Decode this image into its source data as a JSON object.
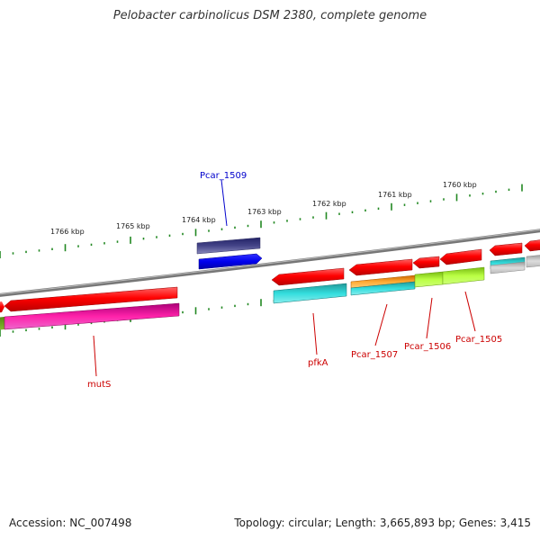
{
  "header": {
    "title": "Pelobacter carbinolicus DSM 2380, complete genome"
  },
  "footer": {
    "accession": "Accession: NC_007498",
    "summary": "Topology: circular; Length: 3,665,893 bp; Genes: 3,415"
  },
  "scale": {
    "ticks": [
      "1766 kbp",
      "1765 kbp",
      "1764 kbp",
      "1763 kbp",
      "1762 kbp",
      "1761 kbp",
      "1760 kbp"
    ]
  },
  "genes": [
    {
      "label": "Pcar_1509",
      "color": "#0000cc"
    },
    {
      "label": "mutS",
      "color": "#cc0000"
    },
    {
      "label": "pfkA",
      "color": "#cc0000"
    },
    {
      "label": "Pcar_1507",
      "color": "#cc0000"
    },
    {
      "label": "Pcar_1506",
      "color": "#cc0000"
    },
    {
      "label": "Pcar_1505",
      "color": "#cc0000"
    }
  ],
  "colors": {
    "forward_cds": "#ee0000",
    "pathway_teal": "#22cccc",
    "pathway_magenta": "#ee1199",
    "pathway_lime": "#aaee33",
    "pathway_orange": "#ff9922",
    "pathway_slate": "#444488",
    "pathway_blue": "#0000ee",
    "backbone": "#888888",
    "tick_mark": "#228822"
  }
}
